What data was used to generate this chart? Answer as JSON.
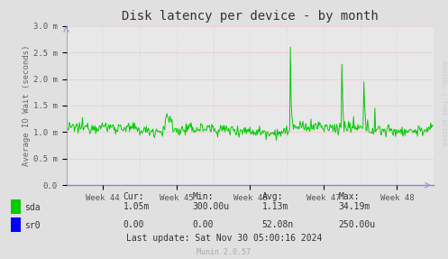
{
  "title": "Disk latency per device - by month",
  "ylabel": "Average IO Wait (seconds)",
  "background_color": "#e0e0e0",
  "plot_bg_color": "#e8e8e8",
  "ylim": [
    0,
    0.003
  ],
  "yticks": [
    0,
    0.0005,
    0.001,
    0.0015,
    0.002,
    0.0025,
    0.003
  ],
  "ytick_labels": [
    "0.0",
    "0.5 m",
    "1.0 m",
    "1.5 m",
    "2.0 m",
    "2.5 m",
    "3.0 m"
  ],
  "week_labels": [
    "Week 44",
    "Week 45",
    "Week 46",
    "Week 47",
    "Week 48"
  ],
  "sda_color": "#00cc00",
  "sr0_color": "#0000ff",
  "stats_header": [
    "Cur:",
    "Min:",
    "Avg:",
    "Max:"
  ],
  "stats_sda": [
    "1.05m",
    "300.00u",
    "1.13m",
    "34.19m"
  ],
  "stats_sr0": [
    "0.00",
    "0.00",
    "52.08n",
    "250.00u"
  ],
  "last_update": "Last update: Sat Nov 30 05:00:16 2024",
  "munin_version": "Munin 2.0.57",
  "watermark": "RRDTOOL / TOBI OETIKER"
}
